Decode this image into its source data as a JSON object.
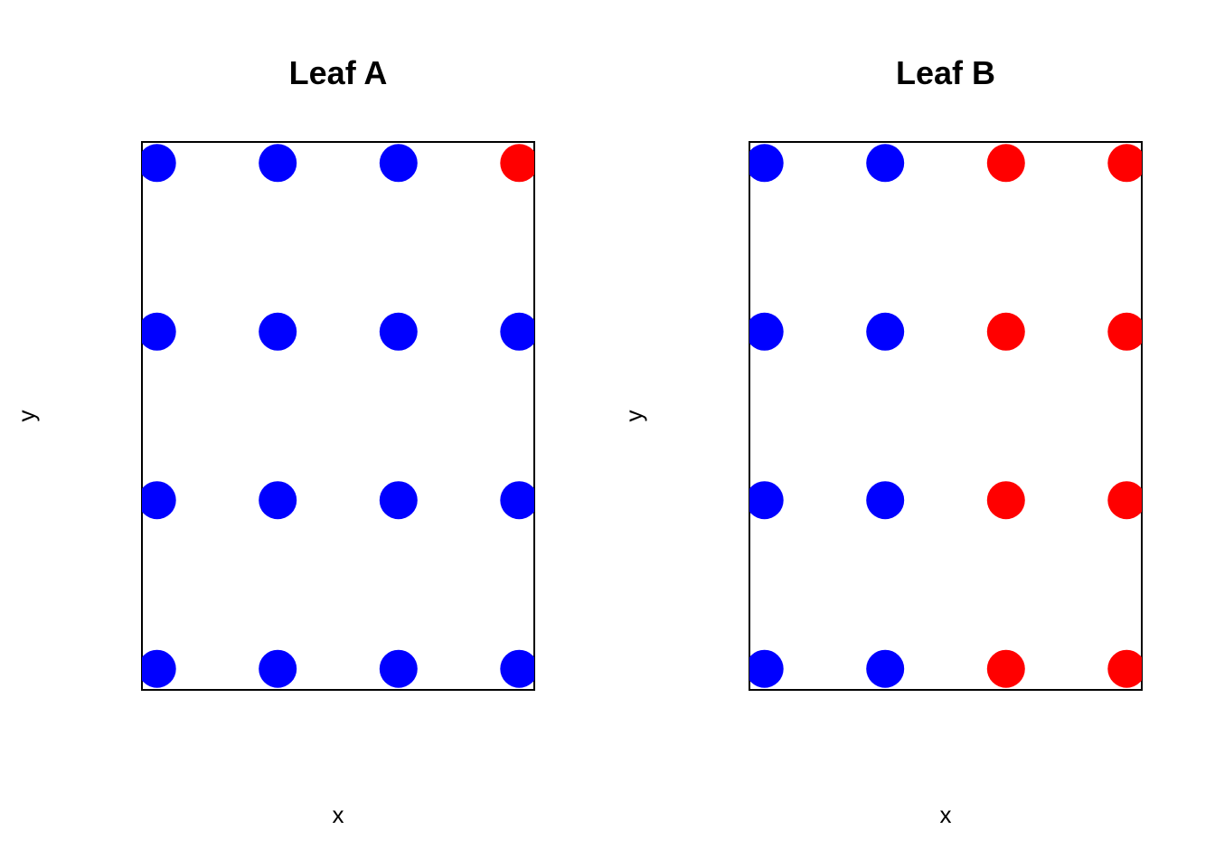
{
  "colors": {
    "blue": "#0000ff",
    "red": "#ff0000"
  },
  "chart_data": [
    {
      "type": "scatter",
      "title": "Leaf A",
      "xlabel": "x",
      "ylabel": "y",
      "xlim": [
        0.875,
        4.125
      ],
      "ylim": [
        0.875,
        4.125
      ],
      "grid": false,
      "axes_ticks": false,
      "points": [
        {
          "x": 1,
          "y": 1,
          "color": "blue"
        },
        {
          "x": 2,
          "y": 1,
          "color": "blue"
        },
        {
          "x": 3,
          "y": 1,
          "color": "blue"
        },
        {
          "x": 4,
          "y": 1,
          "color": "blue"
        },
        {
          "x": 1,
          "y": 2,
          "color": "blue"
        },
        {
          "x": 2,
          "y": 2,
          "color": "blue"
        },
        {
          "x": 3,
          "y": 2,
          "color": "blue"
        },
        {
          "x": 4,
          "y": 2,
          "color": "blue"
        },
        {
          "x": 1,
          "y": 3,
          "color": "blue"
        },
        {
          "x": 2,
          "y": 3,
          "color": "blue"
        },
        {
          "x": 3,
          "y": 3,
          "color": "blue"
        },
        {
          "x": 4,
          "y": 3,
          "color": "blue"
        },
        {
          "x": 1,
          "y": 4,
          "color": "blue"
        },
        {
          "x": 2,
          "y": 4,
          "color": "blue"
        },
        {
          "x": 3,
          "y": 4,
          "color": "blue"
        },
        {
          "x": 4,
          "y": 4,
          "color": "red"
        }
      ]
    },
    {
      "type": "scatter",
      "title": "Leaf B",
      "xlabel": "x",
      "ylabel": "y",
      "xlim": [
        0.875,
        4.125
      ],
      "ylim": [
        0.875,
        4.125
      ],
      "grid": false,
      "axes_ticks": false,
      "points": [
        {
          "x": 1,
          "y": 1,
          "color": "blue"
        },
        {
          "x": 2,
          "y": 1,
          "color": "blue"
        },
        {
          "x": 3,
          "y": 1,
          "color": "red"
        },
        {
          "x": 4,
          "y": 1,
          "color": "red"
        },
        {
          "x": 1,
          "y": 2,
          "color": "blue"
        },
        {
          "x": 2,
          "y": 2,
          "color": "blue"
        },
        {
          "x": 3,
          "y": 2,
          "color": "red"
        },
        {
          "x": 4,
          "y": 2,
          "color": "red"
        },
        {
          "x": 1,
          "y": 3,
          "color": "blue"
        },
        {
          "x": 2,
          "y": 3,
          "color": "blue"
        },
        {
          "x": 3,
          "y": 3,
          "color": "red"
        },
        {
          "x": 4,
          "y": 3,
          "color": "red"
        },
        {
          "x": 1,
          "y": 4,
          "color": "blue"
        },
        {
          "x": 2,
          "y": 4,
          "color": "blue"
        },
        {
          "x": 3,
          "y": 4,
          "color": "red"
        },
        {
          "x": 4,
          "y": 4,
          "color": "red"
        }
      ]
    }
  ]
}
